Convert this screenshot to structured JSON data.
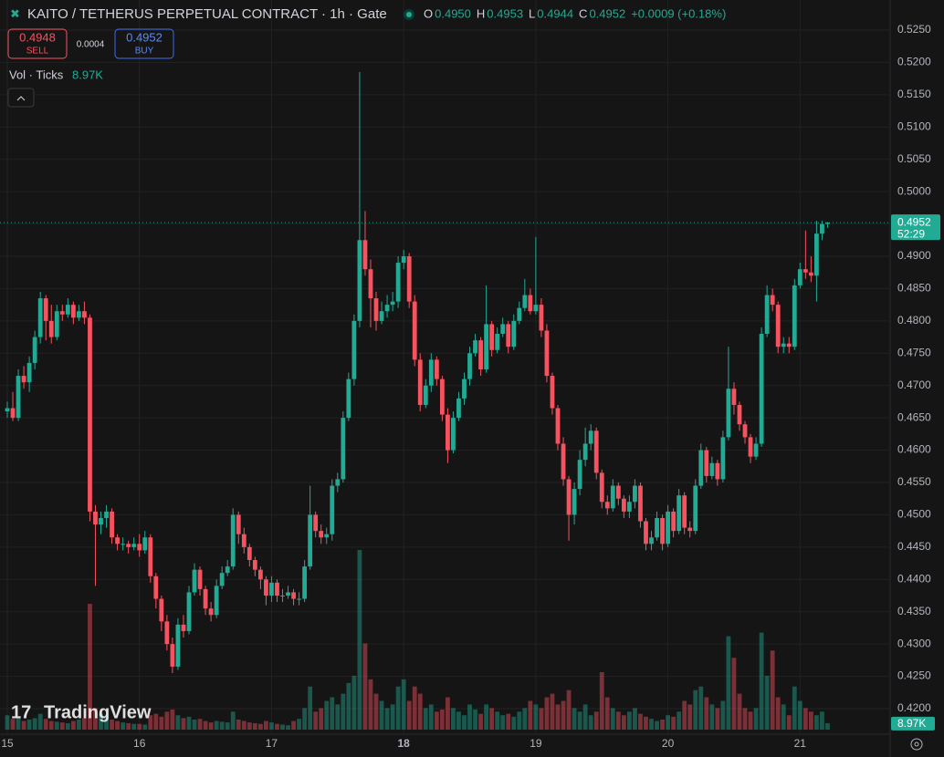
{
  "header": {
    "title": "KAITO / TETHERUS PERPETUAL CONTRACT · 1h · Gate",
    "ohlc_legend": [
      {
        "label": "O",
        "value": "0.4950"
      },
      {
        "label": "H",
        "value": "0.4953"
      },
      {
        "label": "L",
        "value": "0.4944"
      },
      {
        "label": "C",
        "value": "0.4952"
      }
    ],
    "change": "+0.0009 (+0.18%)",
    "sell": {
      "price": "0.4948",
      "label": "SELL"
    },
    "spread": "0.0004",
    "buy": {
      "price": "0.4952",
      "label": "BUY"
    },
    "volume_legend": {
      "label": "Vol · Ticks",
      "value": "8.97K"
    },
    "price_tag": {
      "price": "0.4952",
      "countdown": "52:29"
    },
    "logo": "TradingView"
  },
  "chart_data": {
    "type": "candlestick",
    "up_color": "#22ab94",
    "down_color": "#f7525f",
    "grid": true,
    "ylim": [
      0.42,
      0.525
    ],
    "yticks": [
      {
        "value": 0.42,
        "label": "0.4200"
      },
      {
        "value": 0.425,
        "label": "0.4250"
      },
      {
        "value": 0.43,
        "label": "0.4300"
      },
      {
        "value": 0.435,
        "label": "0.4350"
      },
      {
        "value": 0.44,
        "label": "0.4400"
      },
      {
        "value": 0.445,
        "label": "0.4450"
      },
      {
        "value": 0.45,
        "label": "0.4500"
      },
      {
        "value": 0.455,
        "label": "0.4550"
      },
      {
        "value": 0.46,
        "label": "0.4600"
      },
      {
        "value": 0.465,
        "label": "0.4650"
      },
      {
        "value": 0.47,
        "label": "0.4700"
      },
      {
        "value": 0.475,
        "label": "0.4750"
      },
      {
        "value": 0.48,
        "label": "0.4800"
      },
      {
        "value": 0.485,
        "label": "0.4850"
      },
      {
        "value": 0.49,
        "label": "0.4900"
      },
      {
        "value": 0.495,
        "label": "0.4950"
      },
      {
        "value": 0.5,
        "label": "0.5000"
      },
      {
        "value": 0.505,
        "label": "0.5050"
      },
      {
        "value": 0.51,
        "label": "0.5100"
      },
      {
        "value": 0.515,
        "label": "0.5150"
      },
      {
        "value": 0.52,
        "label": "0.5200"
      },
      {
        "value": 0.525,
        "label": "0.5250"
      }
    ],
    "categories": [
      "15",
      null,
      null,
      null,
      null,
      null,
      null,
      null,
      null,
      null,
      null,
      null,
      null,
      null,
      null,
      null,
      null,
      null,
      null,
      null,
      null,
      null,
      null,
      null,
      "16",
      null,
      null,
      null,
      null,
      null,
      null,
      null,
      null,
      null,
      null,
      null,
      null,
      null,
      null,
      null,
      null,
      null,
      null,
      null,
      null,
      null,
      null,
      null,
      "17",
      null,
      null,
      null,
      null,
      null,
      null,
      null,
      null,
      null,
      null,
      null,
      null,
      null,
      null,
      null,
      null,
      null,
      null,
      null,
      null,
      null,
      null,
      null,
      "18",
      null,
      null,
      null,
      null,
      null,
      null,
      null,
      null,
      null,
      null,
      null,
      null,
      null,
      null,
      null,
      null,
      null,
      null,
      null,
      null,
      null,
      null,
      null,
      "19",
      null,
      null,
      null,
      null,
      null,
      null,
      null,
      null,
      null,
      null,
      null,
      null,
      null,
      null,
      null,
      null,
      null,
      null,
      null,
      null,
      null,
      null,
      null,
      "20",
      null,
      null,
      null,
      null,
      null,
      null,
      null,
      null,
      null,
      null,
      null,
      null,
      null,
      null,
      null,
      null,
      null,
      null,
      null,
      null,
      null,
      null,
      null,
      "21",
      null,
      null,
      null,
      null,
      null
    ],
    "open": [
      0.466,
      0.4665,
      0.465,
      0.4715,
      0.4705,
      0.4735,
      0.4775,
      0.4835,
      0.48,
      0.4775,
      0.4815,
      0.481,
      0.4825,
      0.4805,
      0.4815,
      0.4805,
      0.4505,
      0.4485,
      0.4495,
      0.4505,
      0.4465,
      0.4455,
      0.4455,
      0.445,
      0.4455,
      0.4445,
      0.4465,
      0.4405,
      0.437,
      0.4335,
      0.43,
      0.4265,
      0.433,
      0.432,
      0.438,
      0.4415,
      0.4385,
      0.4355,
      0.4345,
      0.439,
      0.441,
      0.442,
      0.45,
      0.447,
      0.445,
      0.443,
      0.4415,
      0.44,
      0.4375,
      0.4395,
      0.4375,
      0.4375,
      0.438,
      0.437,
      0.437,
      0.442,
      0.45,
      0.4475,
      0.4465,
      0.447,
      0.4545,
      0.4555,
      0.465,
      0.471,
      0.48,
      0.4925,
      0.488,
      0.4835,
      0.48,
      0.4815,
      0.4825,
      0.483,
      0.489,
      0.49,
      0.483,
      0.474,
      0.467,
      0.47,
      0.474,
      0.471,
      0.4655,
      0.46,
      0.465,
      0.468,
      0.471,
      0.475,
      0.477,
      0.4725,
      0.4795,
      0.4755,
      0.478,
      0.4795,
      0.476,
      0.48,
      0.482,
      0.484,
      0.4815,
      0.4825,
      0.4785,
      0.4715,
      0.4665,
      0.461,
      0.4555,
      0.45,
      0.454,
      0.4585,
      0.461,
      0.463,
      0.4565,
      0.452,
      0.451,
      0.4545,
      0.4525,
      0.4505,
      0.452,
      0.4545,
      0.449,
      0.4455,
      0.4465,
      0.4495,
      0.4455,
      0.4505,
      0.4475,
      0.453,
      0.448,
      0.4475,
      0.4545,
      0.46,
      0.456,
      0.458,
      0.4555,
      0.462,
      0.4695,
      0.467,
      0.464,
      0.462,
      0.459,
      0.461,
      0.478,
      0.484,
      0.4825,
      0.476,
      0.4765,
      0.476,
      0.4855,
      0.488,
      0.4875,
      0.487,
      0.4935,
      0.495
    ],
    "high": [
      0.4675,
      0.469,
      0.4725,
      0.473,
      0.4745,
      0.4785,
      0.4845,
      0.484,
      0.4825,
      0.4825,
      0.4825,
      0.4835,
      0.483,
      0.4825,
      0.483,
      0.481,
      0.4515,
      0.4505,
      0.4515,
      0.451,
      0.447,
      0.4465,
      0.446,
      0.4465,
      0.447,
      0.4475,
      0.447,
      0.441,
      0.4375,
      0.4345,
      0.431,
      0.434,
      0.4345,
      0.439,
      0.4425,
      0.442,
      0.439,
      0.4365,
      0.44,
      0.442,
      0.443,
      0.451,
      0.4505,
      0.448,
      0.4455,
      0.4435,
      0.442,
      0.4405,
      0.4405,
      0.44,
      0.4385,
      0.439,
      0.4385,
      0.438,
      0.443,
      0.4545,
      0.4505,
      0.4485,
      0.448,
      0.4555,
      0.4565,
      0.466,
      0.472,
      0.481,
      0.5185,
      0.497,
      0.4895,
      0.4845,
      0.483,
      0.484,
      0.4845,
      0.49,
      0.491,
      0.4905,
      0.484,
      0.475,
      0.471,
      0.475,
      0.4745,
      0.4715,
      0.4665,
      0.466,
      0.469,
      0.472,
      0.476,
      0.478,
      0.4775,
      0.4855,
      0.48,
      0.479,
      0.4805,
      0.48,
      0.481,
      0.483,
      0.4865,
      0.485,
      0.493,
      0.4835,
      0.4795,
      0.472,
      0.467,
      0.462,
      0.456,
      0.455,
      0.46,
      0.4635,
      0.464,
      0.4635,
      0.457,
      0.453,
      0.4555,
      0.455,
      0.453,
      0.453,
      0.4555,
      0.455,
      0.4495,
      0.4475,
      0.4505,
      0.45,
      0.4515,
      0.451,
      0.454,
      0.4535,
      0.449,
      0.4555,
      0.461,
      0.4605,
      0.459,
      0.4585,
      0.463,
      0.476,
      0.4705,
      0.4675,
      0.4645,
      0.4625,
      0.462,
      0.479,
      0.4855,
      0.485,
      0.483,
      0.4775,
      0.4775,
      0.4865,
      0.489,
      0.494,
      0.49,
      0.4955,
      0.4955,
      0.4953
    ],
    "low": [
      0.465,
      0.4645,
      0.4645,
      0.4695,
      0.469,
      0.4725,
      0.4765,
      0.477,
      0.4765,
      0.477,
      0.48,
      0.4805,
      0.4795,
      0.48,
      0.4795,
      0.449,
      0.439,
      0.447,
      0.448,
      0.4455,
      0.4445,
      0.4445,
      0.444,
      0.4445,
      0.4435,
      0.444,
      0.4395,
      0.4355,
      0.432,
      0.429,
      0.4255,
      0.426,
      0.431,
      0.4315,
      0.4375,
      0.4375,
      0.4345,
      0.4335,
      0.434,
      0.4385,
      0.4405,
      0.4415,
      0.4455,
      0.444,
      0.442,
      0.4405,
      0.4385,
      0.436,
      0.4365,
      0.4365,
      0.4365,
      0.437,
      0.436,
      0.436,
      0.4365,
      0.4415,
      0.4465,
      0.4455,
      0.4455,
      0.446,
      0.4535,
      0.455,
      0.4645,
      0.47,
      0.479,
      0.487,
      0.479,
      0.4785,
      0.4795,
      0.4805,
      0.4815,
      0.482,
      0.488,
      0.482,
      0.473,
      0.466,
      0.4665,
      0.469,
      0.47,
      0.4645,
      0.458,
      0.4595,
      0.4645,
      0.467,
      0.47,
      0.4745,
      0.4715,
      0.472,
      0.4745,
      0.475,
      0.4775,
      0.475,
      0.4755,
      0.4795,
      0.4815,
      0.481,
      0.481,
      0.4775,
      0.4705,
      0.4655,
      0.46,
      0.4545,
      0.446,
      0.4485,
      0.453,
      0.4575,
      0.46,
      0.4555,
      0.451,
      0.45,
      0.4505,
      0.4515,
      0.4495,
      0.4495,
      0.451,
      0.448,
      0.4445,
      0.4445,
      0.446,
      0.4445,
      0.445,
      0.4465,
      0.447,
      0.447,
      0.4465,
      0.447,
      0.454,
      0.455,
      0.4555,
      0.4545,
      0.455,
      0.4615,
      0.4655,
      0.463,
      0.461,
      0.458,
      0.4585,
      0.4605,
      0.4775,
      0.4815,
      0.475,
      0.475,
      0.475,
      0.4755,
      0.485,
      0.4865,
      0.486,
      0.483,
      0.4925,
      0.4944
    ],
    "close": [
      0.4665,
      0.465,
      0.4715,
      0.4705,
      0.4735,
      0.4775,
      0.4835,
      0.48,
      0.4775,
      0.4815,
      0.481,
      0.4825,
      0.4805,
      0.4815,
      0.4805,
      0.4505,
      0.4485,
      0.4495,
      0.4505,
      0.4465,
      0.4455,
      0.4455,
      0.445,
      0.4455,
      0.4445,
      0.4465,
      0.4405,
      0.437,
      0.4335,
      0.43,
      0.4265,
      0.433,
      0.432,
      0.438,
      0.4415,
      0.4385,
      0.4355,
      0.4345,
      0.439,
      0.441,
      0.442,
      0.45,
      0.447,
      0.445,
      0.443,
      0.4415,
      0.44,
      0.4375,
      0.4395,
      0.4375,
      0.4375,
      0.438,
      0.437,
      0.437,
      0.442,
      0.45,
      0.4475,
      0.4465,
      0.447,
      0.4545,
      0.4555,
      0.465,
      0.471,
      0.48,
      0.4925,
      0.488,
      0.4835,
      0.48,
      0.4815,
      0.4825,
      0.483,
      0.489,
      0.49,
      0.483,
      0.474,
      0.467,
      0.47,
      0.474,
      0.471,
      0.4655,
      0.46,
      0.465,
      0.468,
      0.471,
      0.475,
      0.477,
      0.4725,
      0.4795,
      0.4755,
      0.478,
      0.4795,
      0.476,
      0.48,
      0.482,
      0.484,
      0.4815,
      0.4825,
      0.4785,
      0.4715,
      0.4665,
      0.461,
      0.4555,
      0.45,
      0.454,
      0.4585,
      0.461,
      0.463,
      0.4565,
      0.452,
      0.451,
      0.4545,
      0.4525,
      0.4505,
      0.452,
      0.4545,
      0.449,
      0.4455,
      0.4465,
      0.4495,
      0.4455,
      0.4505,
      0.4475,
      0.453,
      0.448,
      0.4475,
      0.4545,
      0.46,
      0.456,
      0.458,
      0.4555,
      0.462,
      0.4695,
      0.467,
      0.464,
      0.462,
      0.459,
      0.461,
      0.478,
      0.484,
      0.4825,
      0.476,
      0.4765,
      0.476,
      0.4855,
      0.488,
      0.4875,
      0.487,
      0.4935,
      0.495,
      0.4952
    ],
    "volume": [
      20000,
      15000,
      18000,
      12000,
      14000,
      16000,
      22000,
      15000,
      12000,
      11000,
      10000,
      9000,
      12000,
      14000,
      16000,
      175000,
      30000,
      22000,
      18000,
      14000,
      12000,
      10000,
      9000,
      8000,
      8000,
      7000,
      20000,
      22000,
      18000,
      25000,
      28000,
      20000,
      16000,
      18000,
      14000,
      15000,
      12000,
      10000,
      12000,
      11000,
      10000,
      25000,
      14000,
      12000,
      10000,
      9000,
      8000,
      12000,
      10000,
      8000,
      7000,
      6000,
      12000,
      15000,
      30000,
      60000,
      25000,
      30000,
      40000,
      45000,
      35000,
      50000,
      65000,
      75000,
      250000,
      120000,
      70000,
      50000,
      40000,
      30000,
      35000,
      60000,
      70000,
      40000,
      60000,
      50000,
      30000,
      35000,
      25000,
      28000,
      45000,
      30000,
      25000,
      20000,
      35000,
      28000,
      22000,
      35000,
      30000,
      25000,
      20000,
      22000,
      18000,
      25000,
      30000,
      40000,
      35000,
      30000,
      45000,
      50000,
      35000,
      40000,
      55000,
      30000,
      25000,
      35000,
      20000,
      25000,
      80000,
      45000,
      30000,
      25000,
      20000,
      25000,
      30000,
      22000,
      18000,
      15000,
      12000,
      14000,
      20000,
      18000,
      25000,
      40000,
      35000,
      55000,
      60000,
      45000,
      35000,
      30000,
      40000,
      130000,
      100000,
      50000,
      30000,
      25000,
      30000,
      135000,
      75000,
      110000,
      45000,
      35000,
      20000,
      60000,
      40000,
      30000,
      25000,
      20000,
      25000,
      8970
    ]
  }
}
